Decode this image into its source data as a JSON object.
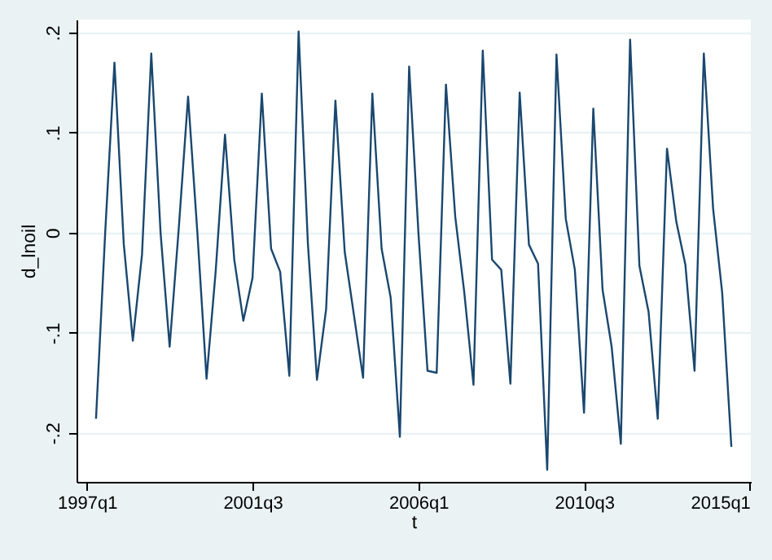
{
  "chart_data": {
    "type": "line",
    "xlabel": "t",
    "ylabel": "d_lnoil",
    "x": [
      "1997-04",
      "1997-07",
      "1997-10",
      "1998-01",
      "1998-04",
      "1998-07",
      "1998-10",
      "1999-01",
      "1999-04",
      "1999-07",
      "1999-10",
      "2000-01",
      "2000-04",
      "2000-07",
      "2000-10",
      "2001-01",
      "2001-04",
      "2001-07",
      "2001-10",
      "2002-01",
      "2002-04",
      "2002-07",
      "2002-10",
      "2003-01",
      "2003-04",
      "2003-07",
      "2003-10",
      "2004-01",
      "2004-04",
      "2004-07",
      "2004-10",
      "2005-01",
      "2005-04",
      "2005-07",
      "2005-10",
      "2006-01",
      "2006-04",
      "2006-07",
      "2006-10",
      "2007-01",
      "2007-04",
      "2007-07",
      "2007-10",
      "2008-01",
      "2008-04",
      "2008-07",
      "2008-10",
      "2009-01",
      "2009-04",
      "2009-07",
      "2009-10",
      "2010-01",
      "2010-04",
      "2010-07",
      "2010-10",
      "2011-01",
      "2011-04",
      "2011-07",
      "2011-10",
      "2012-01",
      "2012-04",
      "2012-07",
      "2012-10",
      "2013-01",
      "2013-04",
      "2013-07",
      "2013-10",
      "2014-01",
      "2014-04",
      "2014-07"
    ],
    "series": [
      {
        "color": "#1a476f",
        "values": [
          -0.186,
          0.0,
          0.17,
          -0.011,
          -0.108,
          -0.022,
          0.179,
          0.0,
          -0.114,
          0.005,
          0.136,
          0.0,
          -0.146,
          -0.038,
          0.098,
          -0.027,
          -0.088,
          -0.045,
          0.139,
          -0.016,
          -0.039,
          -0.143,
          0.201,
          -0.011,
          -0.147,
          -0.076,
          0.132,
          -0.019,
          -0.082,
          -0.145,
          0.139,
          -0.016,
          -0.065,
          -0.204,
          0.166,
          0.0,
          -0.138,
          -0.14,
          0.148,
          0.016,
          -0.06,
          -0.152,
          0.182,
          -0.027,
          -0.037,
          -0.151,
          0.14,
          -0.012,
          -0.031,
          -0.237,
          0.178,
          0.014,
          -0.037,
          -0.18,
          0.124,
          -0.057,
          -0.114,
          -0.211,
          0.193,
          -0.033,
          -0.079,
          -0.186,
          0.084,
          0.011,
          -0.032,
          -0.138,
          0.179,
          0.024,
          -0.06,
          -0.214
        ]
      }
    ],
    "xlim": [
      "1996-09-20",
      "2015-01-10"
    ],
    "xticks": [
      {
        "value": "1997-01",
        "label": "1997q1"
      },
      {
        "value": "2001-07",
        "label": "2001q3"
      },
      {
        "value": "2006-01",
        "label": "2006q1"
      },
      {
        "value": "2010-07",
        "label": "2010q3"
      },
      {
        "value": "2015-01",
        "label": "2015q1"
      }
    ],
    "ylim": [
      -0.249,
      0.213
    ],
    "yticks": [
      {
        "value": -0.2,
        "label": "-.2"
      },
      {
        "value": -0.1,
        "label": "-.1"
      },
      {
        "value": 0,
        "label": "0"
      },
      {
        "value": 0.1,
        "label": ".1"
      },
      {
        "value": 0.2,
        "label": ".2"
      }
    ],
    "grid": "y",
    "marker": "none",
    "line_style": "solid"
  }
}
